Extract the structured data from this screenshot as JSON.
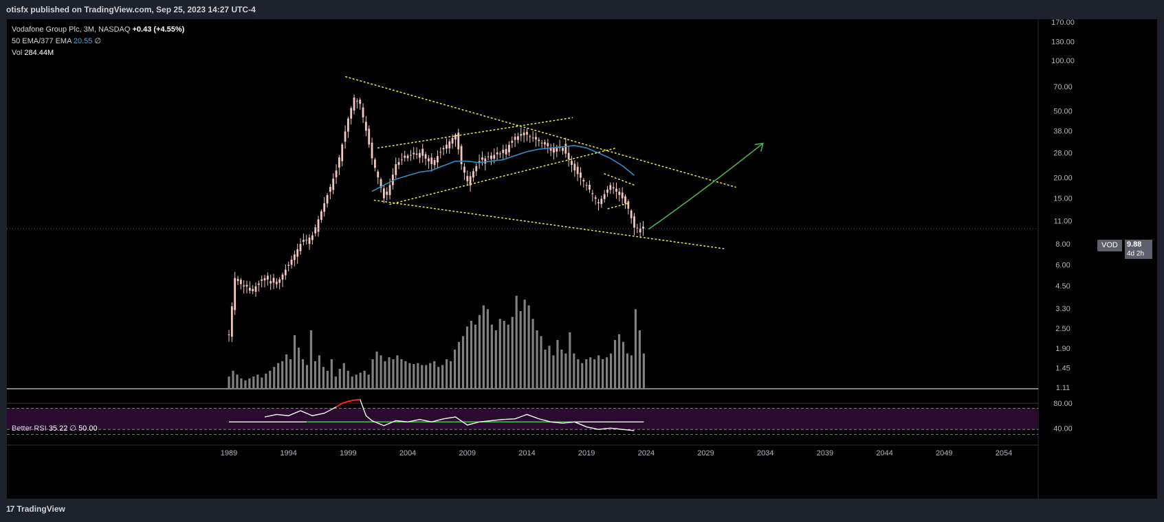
{
  "header": {
    "published_text": "otisfx published on TradingView.com, Sep 25, 2023 14:27 UTC-4"
  },
  "legend": {
    "symbol": "Vodafone Group Plc, 3M, NASDAQ",
    "change": "+0.43 (+4.55%)",
    "ema_label": "50 EMA/377 EMA",
    "ema_value": "20.55",
    "ema_value2": "∅",
    "vol_label": "Vol",
    "vol_value": "284.44M"
  },
  "rsi_legend": {
    "label": "Better RSI",
    "value": "35.22",
    "sep": "∅",
    "value2": "50.00"
  },
  "price_badge": {
    "ticker": "VOD",
    "price": "9.88",
    "countdown": "4d 2h"
  },
  "footer": {
    "brand": "TradingView",
    "brand_mark": "17"
  },
  "colors": {
    "background": "#000000",
    "candle": "#f4c7c3",
    "volume": "#808080",
    "ema": "#2f8fc9",
    "trendline": "#e8e84a",
    "projection": "#4caf50",
    "rsi_line": "#ffffff",
    "rsi_overbought": "#ff1e1e",
    "rsi_band": "#2a0a2e"
  },
  "chart_data": {
    "type": "candlestick",
    "title": "Vodafone Group Plc, 3M, NASDAQ",
    "y_scale": "log",
    "y_ticks": [
      170.0,
      130.0,
      100.0,
      70.0,
      50.0,
      38.0,
      28.0,
      20.0,
      15.0,
      11.0,
      8.0,
      6.0,
      4.5,
      3.3,
      2.5,
      1.9,
      1.45,
      1.11
    ],
    "x_ticks": [
      "1989",
      "1994",
      "1999",
      "2004",
      "2009",
      "2014",
      "2019",
      "2024",
      "2029",
      "2034",
      "2039",
      "2044",
      "2049",
      "2054"
    ],
    "last_price": 9.88,
    "close_series": {
      "x": [
        1989.0,
        1989.5,
        1990,
        1991,
        1992,
        1993,
        1994,
        1995,
        1996,
        1997,
        1998,
        1999,
        1999.5,
        2000,
        2000.5,
        2001,
        2001.5,
        2002,
        2002.5,
        2003,
        2004,
        2005,
        2006,
        2007,
        2008,
        2008.5,
        2009,
        2010,
        2011,
        2012,
        2013,
        2014,
        2015,
        2016,
        2017,
        2018,
        2019,
        2020,
        2021,
        2022,
        2022.5,
        2023,
        2023.7
      ],
      "values": [
        2.3,
        5.0,
        4.6,
        4.3,
        5.0,
        4.6,
        6.0,
        8.0,
        9.0,
        14.0,
        22.0,
        45.0,
        60.0,
        55.0,
        38.0,
        26.0,
        20.0,
        15.0,
        18.0,
        24.0,
        27.0,
        28.0,
        24.0,
        30.0,
        36.0,
        24.0,
        19.0,
        25.0,
        27.0,
        28.0,
        35.0,
        36.0,
        33.0,
        30.0,
        30.0,
        22.0,
        18.0,
        14.0,
        18.0,
        15.0,
        13.0,
        10.0,
        9.88
      ]
    },
    "volume_series": [
      12,
      18,
      14,
      10,
      8,
      10,
      12,
      14,
      11,
      15,
      18,
      22,
      26,
      28,
      35,
      30,
      55,
      42,
      30,
      24,
      60,
      28,
      34,
      22,
      18,
      30,
      12,
      20,
      26,
      18,
      12,
      14,
      16,
      18,
      14,
      30,
      38,
      34,
      28,
      32,
      30,
      34,
      30,
      28,
      26,
      25,
      26,
      24,
      24,
      26,
      28,
      22,
      24,
      30,
      28,
      40,
      48,
      54,
      64,
      70,
      66,
      76,
      86,
      82,
      66,
      60,
      72,
      70,
      66,
      74,
      96,
      80,
      92,
      86,
      72,
      60,
      54,
      40,
      44,
      34,
      50,
      40,
      36,
      58,
      36,
      30,
      26,
      30,
      32,
      30,
      34,
      30,
      32,
      36,
      50,
      56,
      48,
      36,
      34,
      82,
      60,
      36
    ],
    "ema50": {
      "x": [
        2001,
        2002,
        2003,
        2004,
        2005,
        2006,
        2007,
        2008,
        2009,
        2010,
        2011,
        2012,
        2013,
        2014,
        2015,
        2016,
        2017,
        2018,
        2019,
        2020,
        2021,
        2022,
        2023
      ],
      "values": [
        16.5,
        18.0,
        19.5,
        20.5,
        21.5,
        22.0,
        23.5,
        25.0,
        25.0,
        24.5,
        25.0,
        25.5,
        27.0,
        28.5,
        29.5,
        30.0,
        30.5,
        31.0,
        30.0,
        28.0,
        26.0,
        23.5,
        20.55
      ]
    },
    "rsi": {
      "label": "Better RSI",
      "value": 35.22,
      "middle": 50.0,
      "y_ticks": [
        80.0,
        40.0
      ],
      "x": [
        1992,
        1993,
        1994,
        1995,
        1996,
        1997,
        1998,
        1998.5,
        1999,
        1999.5,
        2000,
        2000.5,
        2001,
        2002,
        2003,
        2004,
        2005,
        2006,
        2007,
        2008,
        2009,
        2010,
        2011,
        2012,
        2013,
        2014,
        2015,
        2016,
        2017,
        2018,
        2019,
        2020,
        2021,
        2022,
        2023
      ],
      "values": [
        58,
        62,
        60,
        68,
        60,
        64,
        74,
        80,
        83,
        85,
        86,
        60,
        52,
        44,
        52,
        50,
        54,
        50,
        55,
        58,
        45,
        50,
        52,
        54,
        55,
        62,
        55,
        50,
        48,
        50,
        42,
        38,
        40,
        38,
        36
      ]
    },
    "annotations": [
      {
        "type": "trendline",
        "style": "dotted",
        "x": [
          1998.8,
          2031.5
        ],
        "y": [
          80.0,
          17.5
        ]
      },
      {
        "type": "trendline",
        "style": "dotted",
        "x": [
          2001.2,
          2030.5
        ],
        "y": [
          14.6,
          7.5
        ]
      },
      {
        "type": "trendline",
        "style": "dotted",
        "x": [
          2001.5,
          2017.8
        ],
        "y": [
          30.0,
          45.5
        ]
      },
      {
        "type": "trendline",
        "style": "dotted",
        "x": [
          2002.5,
          2021.5
        ],
        "y": [
          13.8,
          30.0
        ]
      },
      {
        "type": "trendline",
        "style": "dotted",
        "x": [
          2020.5,
          2023.0
        ],
        "y": [
          21.0,
          18.0
        ]
      },
      {
        "type": "trendline",
        "style": "dotted",
        "x": [
          2020.8,
          2022.5
        ],
        "y": [
          13.0,
          14.0
        ]
      },
      {
        "type": "arrow",
        "x": [
          2024.2,
          2033.8
        ],
        "y": [
          9.8,
          32.0
        ]
      }
    ]
  }
}
